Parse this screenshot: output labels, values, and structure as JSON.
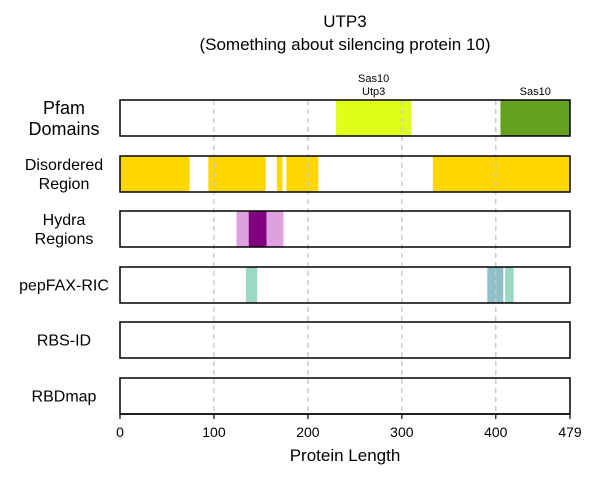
{
  "chart_data": {
    "type": "track",
    "title": "UTP3",
    "subtitle": "(Something about silencing protein 10)",
    "xlabel": "Protein Length",
    "xlim": [
      0,
      479
    ],
    "xticks": [
      0,
      100,
      200,
      300,
      400,
      479
    ],
    "grid_lines": [
      100,
      200,
      300,
      400
    ],
    "tracks": [
      {
        "name": "Pfam\nDomains",
        "segments": [
          {
            "start": 230,
            "end": 310,
            "color": "#dfff1a",
            "label": "Sas10\nUtp3"
          },
          {
            "start": 405,
            "end": 479,
            "color": "#63a11f",
            "label": "Sas10"
          }
        ]
      },
      {
        "name": "Disordered\nRegion",
        "segments": [
          {
            "start": 0,
            "end": 74,
            "color": "#ffd700"
          },
          {
            "start": 94,
            "end": 155,
            "color": "#ffd700"
          },
          {
            "start": 167,
            "end": 173,
            "color": "#ffd700"
          },
          {
            "start": 177,
            "end": 211,
            "color": "#ffd700"
          },
          {
            "start": 333,
            "end": 479,
            "color": "#ffd700"
          }
        ]
      },
      {
        "name": "Hydra\nRegions",
        "segments": [
          {
            "start": 124,
            "end": 137,
            "color": "#dfa0df"
          },
          {
            "start": 137,
            "end": 156,
            "color": "#800080"
          },
          {
            "start": 156,
            "end": 174,
            "color": "#dfa0df"
          }
        ]
      },
      {
        "name": "pepFAX-RIC",
        "segments": [
          {
            "start": 134,
            "end": 146,
            "color": "#9ad9c2"
          },
          {
            "start": 391,
            "end": 408,
            "color": "#8fbfc8"
          },
          {
            "start": 410,
            "end": 419,
            "color": "#9ad9c2"
          }
        ]
      },
      {
        "name": "RBS-ID",
        "segments": []
      },
      {
        "name": "RBDmap",
        "segments": []
      }
    ]
  }
}
